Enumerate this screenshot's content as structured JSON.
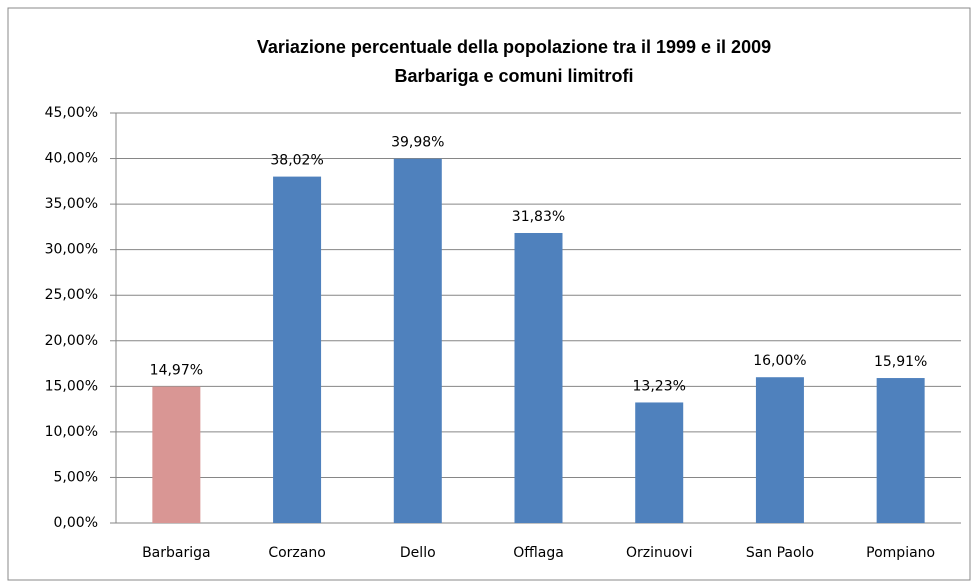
{
  "chart_data": {
    "type": "bar",
    "title": "Variazione percentuale della popolazione tra il 1999  e il 2009",
    "subtitle": "Barbariga e comuni limitrofi",
    "categories": [
      "Barbariga",
      "Corzano",
      "Dello",
      "Offlaga",
      "Orzinuovi",
      "San Paolo",
      "Pompiano"
    ],
    "values": [
      14.97,
      38.02,
      39.98,
      31.83,
      13.23,
      16.0,
      15.91
    ],
    "value_labels": [
      "14,97%",
      "38,02%",
      "39,98%",
      "31,83%",
      "13,23%",
      "16,00%",
      "15,91%"
    ],
    "colors": [
      "#d99694",
      "#4f81bd",
      "#4f81bd",
      "#4f81bd",
      "#4f81bd",
      "#4f81bd",
      "#4f81bd"
    ],
    "ylim": [
      0,
      45
    ],
    "yticks": [
      {
        "value": 0,
        "label": "0,00%"
      },
      {
        "value": 5,
        "label": "5,00%"
      },
      {
        "value": 10,
        "label": "10,00%"
      },
      {
        "value": 15,
        "label": "15,00%"
      },
      {
        "value": 20,
        "label": "20,00%"
      },
      {
        "value": 25,
        "label": "25,00%"
      },
      {
        "value": 30,
        "label": "30,00%"
      },
      {
        "value": 35,
        "label": "35,00%"
      },
      {
        "value": 40,
        "label": "40,00%"
      },
      {
        "value": 45,
        "label": "45,00%"
      }
    ],
    "grid": true
  }
}
